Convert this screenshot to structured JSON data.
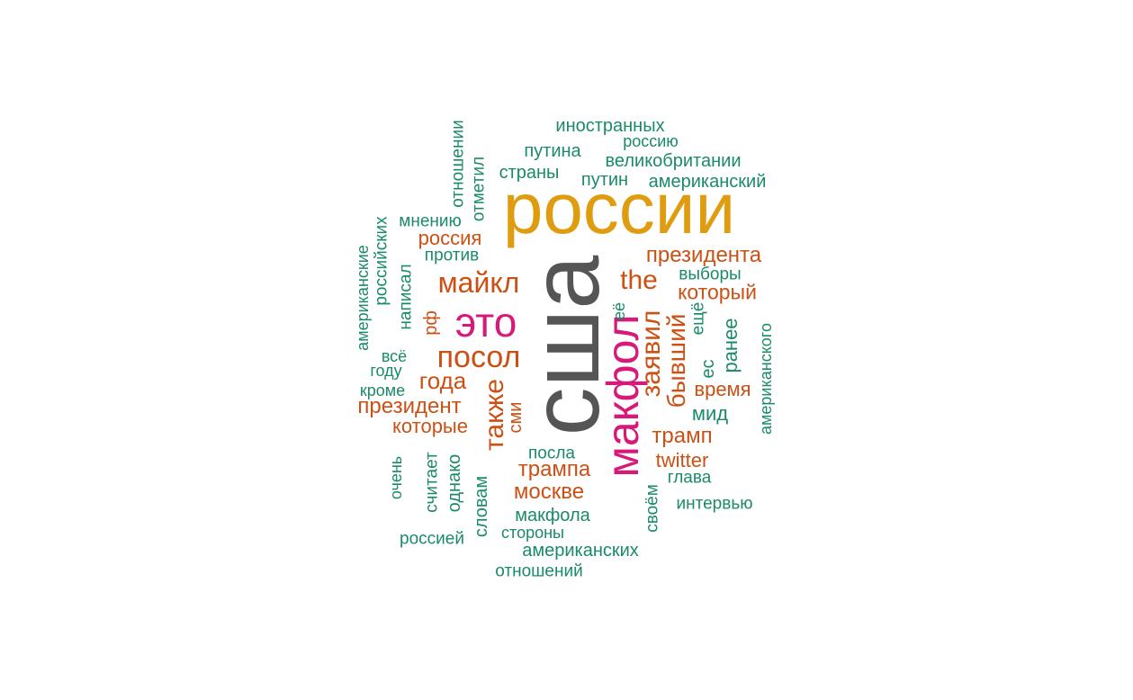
{
  "palette": {
    "gray": "#555555",
    "gold": "#e09c0f",
    "magenta": "#d6197a",
    "orange": "#cc5014",
    "green": "#1a8a6a"
  },
  "words": [
    {
      "text": "сша",
      "color": "gray",
      "vertical": true
    },
    {
      "text": "россии",
      "color": "gold",
      "vertical": false
    },
    {
      "text": "макфол",
      "color": "magenta",
      "vertical": true
    },
    {
      "text": "это",
      "color": "magenta",
      "vertical": false
    },
    {
      "text": "посол",
      "color": "orange",
      "vertical": false
    },
    {
      "text": "майкл",
      "color": "orange",
      "vertical": false
    },
    {
      "text": "также",
      "color": "orange",
      "vertical": true
    },
    {
      "text": "заявил",
      "color": "orange",
      "vertical": true
    },
    {
      "text": "бывший",
      "color": "orange",
      "vertical": true
    },
    {
      "text": "the",
      "color": "orange",
      "vertical": false
    },
    {
      "text": "года",
      "color": "orange",
      "vertical": false
    },
    {
      "text": "президента",
      "color": "orange",
      "vertical": false
    },
    {
      "text": "который",
      "color": "orange",
      "vertical": false
    },
    {
      "text": "президент",
      "color": "orange",
      "vertical": false
    },
    {
      "text": "которые",
      "color": "orange",
      "vertical": false
    },
    {
      "text": "трампа",
      "color": "orange",
      "vertical": false
    },
    {
      "text": "москве",
      "color": "orange",
      "vertical": false
    },
    {
      "text": "трамп",
      "color": "orange",
      "vertical": false
    },
    {
      "text": "время",
      "color": "orange",
      "vertical": false
    },
    {
      "text": "россия",
      "color": "orange",
      "vertical": false
    },
    {
      "text": "рф",
      "color": "orange",
      "vertical": true
    },
    {
      "text": "twitter",
      "color": "orange",
      "vertical": false
    },
    {
      "text": "сми",
      "color": "orange",
      "vertical": true
    },
    {
      "text": "иностранных",
      "color": "green",
      "vertical": false
    },
    {
      "text": "россию",
      "color": "green",
      "vertical": false
    },
    {
      "text": "путина",
      "color": "green",
      "vertical": false
    },
    {
      "text": "великобритании",
      "color": "green",
      "vertical": false
    },
    {
      "text": "страны",
      "color": "green",
      "vertical": false
    },
    {
      "text": "путин",
      "color": "green",
      "vertical": false
    },
    {
      "text": "американский",
      "color": "green",
      "vertical": false
    },
    {
      "text": "отношении",
      "color": "green",
      "vertical": true
    },
    {
      "text": "отметил",
      "color": "green",
      "vertical": true
    },
    {
      "text": "мнению",
      "color": "green",
      "vertical": false
    },
    {
      "text": "российских",
      "color": "green",
      "vertical": true
    },
    {
      "text": "американские",
      "color": "green",
      "vertical": true
    },
    {
      "text": "написал",
      "color": "green",
      "vertical": true
    },
    {
      "text": "против",
      "color": "green",
      "vertical": false
    },
    {
      "text": "всё",
      "color": "green",
      "vertical": false
    },
    {
      "text": "году",
      "color": "green",
      "vertical": false
    },
    {
      "text": "кроме",
      "color": "green",
      "vertical": false
    },
    {
      "text": "выборы",
      "color": "green",
      "vertical": false
    },
    {
      "text": "её",
      "color": "green",
      "vertical": true
    },
    {
      "text": "ещё",
      "color": "green",
      "vertical": true
    },
    {
      "text": "ес",
      "color": "green",
      "vertical": true
    },
    {
      "text": "ранее",
      "color": "green",
      "vertical": true
    },
    {
      "text": "американского",
      "color": "green",
      "vertical": true
    },
    {
      "text": "мид",
      "color": "green",
      "vertical": false
    },
    {
      "text": "посла",
      "color": "green",
      "vertical": false
    },
    {
      "text": "глава",
      "color": "green",
      "vertical": false
    },
    {
      "text": "интервью",
      "color": "green",
      "vertical": false
    },
    {
      "text": "своём",
      "color": "green",
      "vertical": true
    },
    {
      "text": "макфола",
      "color": "green",
      "vertical": false
    },
    {
      "text": "стороны",
      "color": "green",
      "vertical": false
    },
    {
      "text": "американских",
      "color": "green",
      "vertical": false
    },
    {
      "text": "отношений",
      "color": "green",
      "vertical": false
    },
    {
      "text": "россией",
      "color": "green",
      "vertical": false
    },
    {
      "text": "очень",
      "color": "green",
      "vertical": true
    },
    {
      "text": "считает",
      "color": "green",
      "vertical": true
    },
    {
      "text": "однако",
      "color": "green",
      "vertical": true
    },
    {
      "text": "словам",
      "color": "green",
      "vertical": true
    }
  ]
}
